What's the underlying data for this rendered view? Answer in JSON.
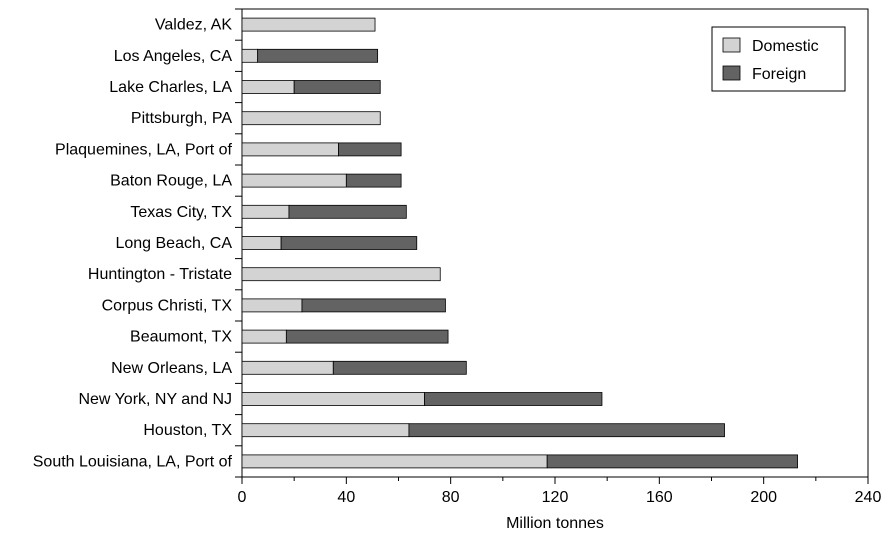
{
  "chart_data": {
    "type": "bar",
    "orientation": "horizontal",
    "stacked": true,
    "categories": [
      "Valdez, AK",
      "Los Angeles, CA",
      "Lake Charles, LA",
      "Pittsburgh, PA",
      "Plaquemines, LA, Port of",
      "Baton Rouge, LA",
      "Texas City, TX",
      "Long Beach, CA",
      "Huntington - Tristate",
      "Corpus Christi, TX",
      "Beaumont, TX",
      "New Orleans, LA",
      "New York, NY and NJ",
      "Houston, TX",
      "South Louisiana, LA, Port of"
    ],
    "series": [
      {
        "name": "Domestic",
        "color": "#d3d3d3",
        "values": [
          51,
          6,
          20,
          53,
          37,
          40,
          18,
          15,
          76,
          23,
          17,
          35,
          70,
          64,
          117
        ]
      },
      {
        "name": "Foreign",
        "color": "#636363",
        "values": [
          0,
          46,
          33,
          0,
          24,
          21,
          45,
          52,
          0,
          55,
          62,
          51,
          68,
          121,
          96
        ]
      }
    ],
    "xlabel": "Million tonnes",
    "ylabel": "",
    "xlim": [
      0,
      240
    ],
    "xticks": [
      0,
      40,
      80,
      120,
      160,
      200,
      240
    ],
    "grid": false,
    "legend_position": "top-right"
  }
}
